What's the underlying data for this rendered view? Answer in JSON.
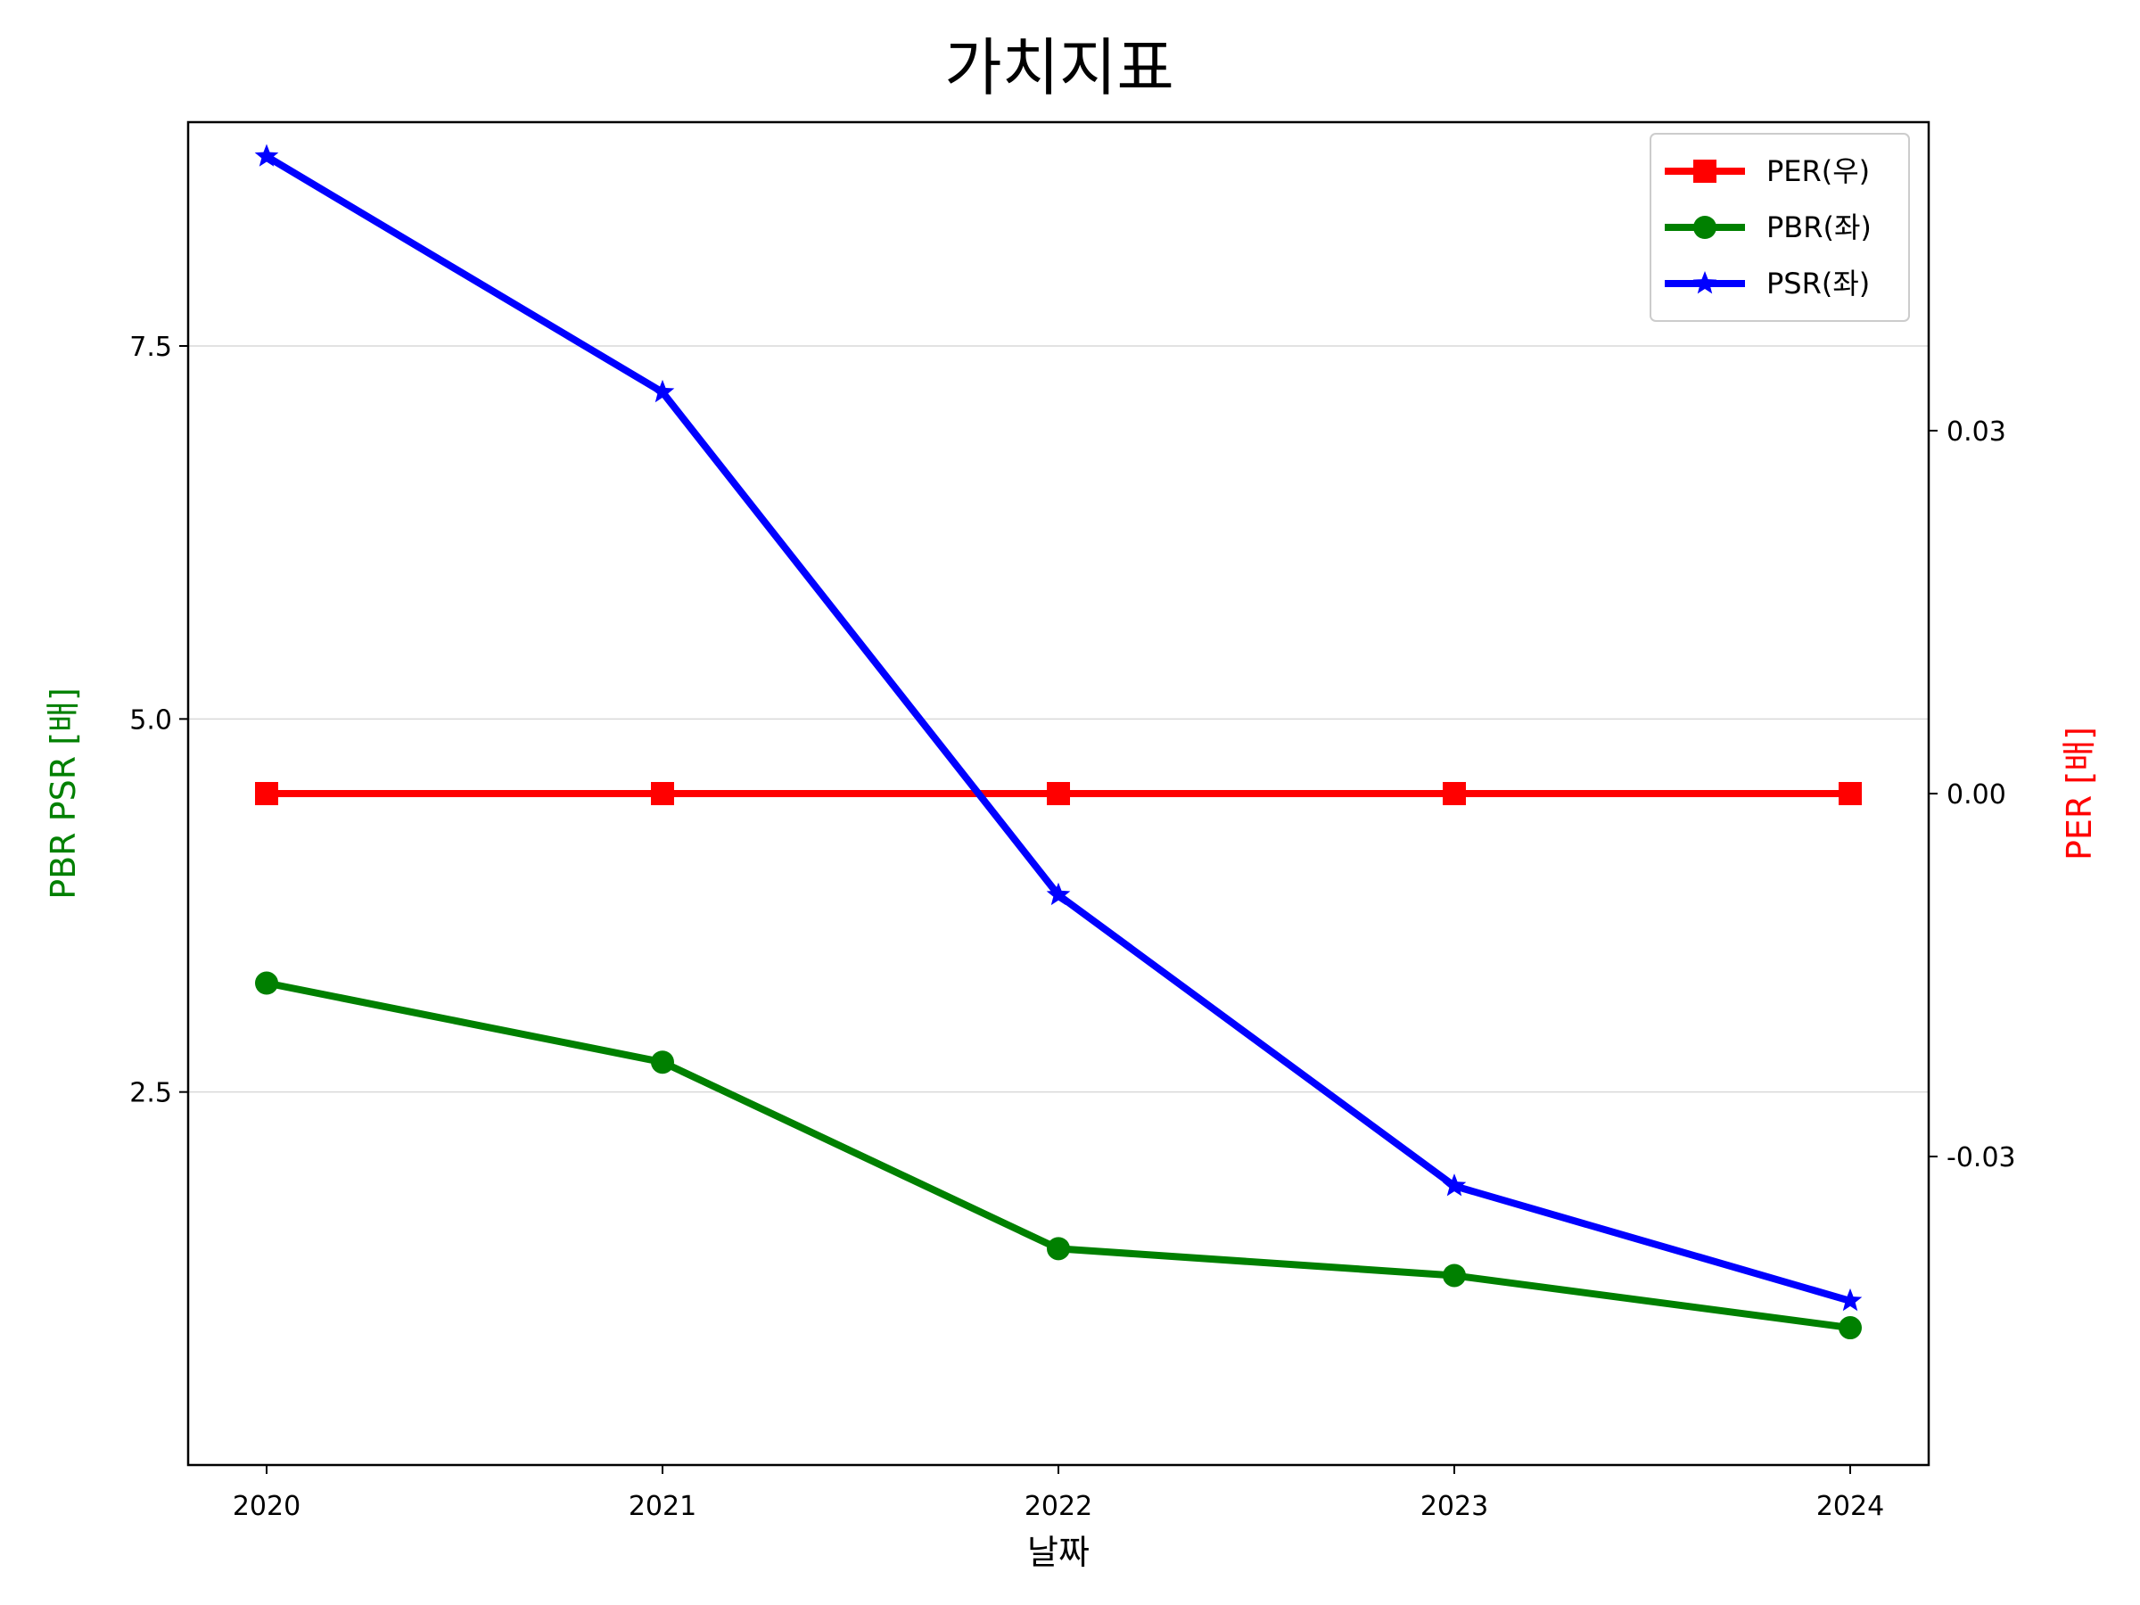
{
  "chart_data": {
    "type": "line",
    "title": "가치지표",
    "xlabel": "날짜",
    "ylabel_left": "PBR PSR [배]",
    "ylabel_right": "PER [배]",
    "categories": [
      "2020",
      "2021",
      "2022",
      "2023",
      "2024"
    ],
    "left_axis": {
      "ylim": [
        0.0,
        9.0
      ],
      "ticks": [
        2.5,
        5.0,
        7.5
      ],
      "tick_labels": [
        "2.5",
        "5.0",
        "7.5"
      ],
      "grid": true,
      "label_color": "#008000"
    },
    "right_axis": {
      "ylim": [
        -0.0555,
        0.0555
      ],
      "ticks": [
        -0.03,
        0.0,
        0.03
      ],
      "tick_labels": [
        "-0.03",
        "0.00",
        "0.03"
      ],
      "label_color": "#ff0000"
    },
    "series": [
      {
        "name": "PER(우)",
        "axis": "right",
        "color": "#ff0000",
        "marker": "square",
        "values": [
          0.0,
          0.0,
          0.0,
          0.0,
          0.0
        ]
      },
      {
        "name": "PBR(좌)",
        "axis": "left",
        "color": "#008000",
        "marker": "circle",
        "values": [
          3.23,
          2.7,
          1.45,
          1.27,
          0.92
        ]
      },
      {
        "name": "PSR(좌)",
        "axis": "left",
        "color": "#0000ff",
        "marker": "star",
        "values": [
          8.77,
          7.19,
          3.82,
          1.87,
          1.1
        ]
      }
    ],
    "legend_position": "top-right"
  }
}
